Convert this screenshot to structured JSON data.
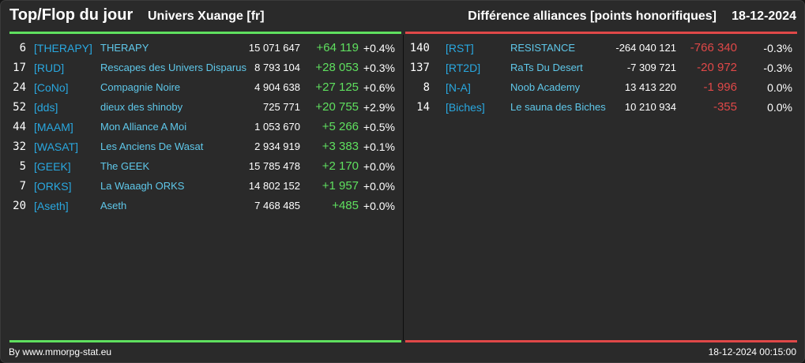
{
  "header": {
    "title": "Top/Flop du jour",
    "server": "Univers Xuange [fr]",
    "right_title": "Différence alliances [points honorifiques]",
    "date": "18-12-2024"
  },
  "colors": {
    "positive": "#5fe05f",
    "negative": "#e04848",
    "tag": "#29a8e0",
    "name": "#5fc8ea",
    "background": "#2a2a2a"
  },
  "top": [
    {
      "rank": "6",
      "tag": "[THERAPY]",
      "name": "THERAPY",
      "points": "15 071 647",
      "diff": "+64 119",
      "pct": "+0.4%"
    },
    {
      "rank": "17",
      "tag": "[RUD]",
      "name": "Rescapes des Univers Disparus",
      "points": "8 793 104",
      "diff": "+28 053",
      "pct": "+0.3%"
    },
    {
      "rank": "24",
      "tag": "[CoNo]",
      "name": "Compagnie Noire",
      "points": "4 904 638",
      "diff": "+27 125",
      "pct": "+0.6%"
    },
    {
      "rank": "52",
      "tag": "[dds]",
      "name": "dieux des shinoby",
      "points": "725 771",
      "diff": "+20 755",
      "pct": "+2.9%"
    },
    {
      "rank": "44",
      "tag": "[MAAM]",
      "name": "Mon Alliance A Moi",
      "points": "1 053 670",
      "diff": "+5 266",
      "pct": "+0.5%"
    },
    {
      "rank": "32",
      "tag": "[WASAT]",
      "name": "Les Anciens De Wasat",
      "points": "2 934 919",
      "diff": "+3 383",
      "pct": "+0.1%"
    },
    {
      "rank": "5",
      "tag": "[GEEK]",
      "name": "The GEEK",
      "points": "15 785 478",
      "diff": "+2 170",
      "pct": "+0.0%"
    },
    {
      "rank": "7",
      "tag": "[ORKS]",
      "name": "La Waaagh ORKS",
      "points": "14 802 152",
      "diff": "+1 957",
      "pct": "+0.0%"
    },
    {
      "rank": "20",
      "tag": "[Aseth]",
      "name": "Aseth",
      "points": "7 468 485",
      "diff": "+485",
      "pct": "+0.0%"
    }
  ],
  "flop": [
    {
      "rank": "140",
      "tag": "[RST]",
      "name": "RESISTANCE",
      "points": "-264 040 121",
      "diff": "-766 340",
      "pct": "-0.3%"
    },
    {
      "rank": "137",
      "tag": "[RT2D]",
      "name": "RaTs Du Desert",
      "points": "-7 309 721",
      "diff": "-20 972",
      "pct": "-0.3%"
    },
    {
      "rank": "8",
      "tag": "[N-A]",
      "name": "Noob Academy",
      "points": "13 413 220",
      "diff": "-1 996",
      "pct": "0.0%"
    },
    {
      "rank": "14",
      "tag": "[Biches]",
      "name": "Le sauna des Biches",
      "points": "10 210 934",
      "diff": "-355",
      "pct": "0.0%"
    }
  ],
  "footer": {
    "credit": "By www.mmorpg-stat.eu",
    "timestamp": "18-12-2024 00:15:00"
  }
}
